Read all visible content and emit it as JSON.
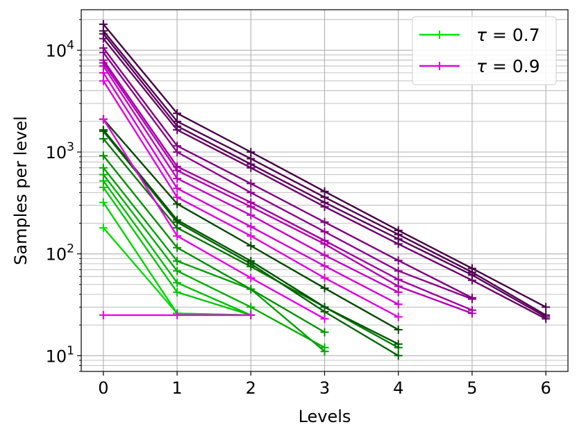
{
  "chart_data": {
    "type": "line",
    "xlabel": "Levels",
    "ylabel": "Samples per level",
    "x_scale": "linear",
    "y_scale": "log",
    "xlim": [
      -0.3,
      6.3
    ],
    "ylim": [
      7,
      25000
    ],
    "grid": true,
    "grid_minor": true,
    "x_ticks": [
      0,
      1,
      2,
      3,
      4,
      5,
      6
    ],
    "y_ticks": [
      {
        "value": 10,
        "mantissa": "10",
        "exp": "1"
      },
      {
        "value": 100,
        "mantissa": "10",
        "exp": "2"
      },
      {
        "value": 1000,
        "mantissa": "10",
        "exp": "3"
      },
      {
        "value": 10000,
        "mantissa": "10",
        "exp": "4"
      }
    ],
    "legend": {
      "position": "top-right",
      "entries": [
        {
          "label_prefix": "τ",
          "label_suffix": " = 0.7",
          "color": "#00e000"
        },
        {
          "label_prefix": "τ",
          "label_suffix": " = 0.9",
          "color": "#e000e0"
        }
      ]
    },
    "series": [
      {
        "color": "#00dd00",
        "x": [
          0,
          1,
          2
        ],
        "y": [
          180,
          26,
          25
        ]
      },
      {
        "color": "#00d400",
        "x": [
          0,
          1,
          2
        ],
        "y": [
          320,
          26,
          25
        ]
      },
      {
        "color": "#00c800",
        "x": [
          0,
          1,
          2
        ],
        "y": [
          450,
          42,
          25
        ]
      },
      {
        "color": "#00bc00",
        "x": [
          0,
          1,
          2
        ],
        "y": [
          520,
          52,
          25
        ]
      },
      {
        "color": "#00b000",
        "x": [
          0,
          1,
          2,
          3
        ],
        "y": [
          600,
          68,
          30,
          12
        ]
      },
      {
        "color": "#00a000",
        "x": [
          0,
          1,
          2,
          3
        ],
        "y": [
          700,
          85,
          45,
          11
        ]
      },
      {
        "color": "#009000",
        "x": [
          0,
          1,
          2,
          3
        ],
        "y": [
          920,
          115,
          45,
          17
        ]
      },
      {
        "color": "#007a00",
        "x": [
          0,
          1,
          2,
          3,
          4
        ],
        "y": [
          1350,
          180,
          75,
          30,
          12
        ]
      },
      {
        "color": "#006400",
        "x": [
          0,
          1,
          2,
          3,
          4
        ],
        "y": [
          1600,
          205,
          80,
          27,
          10
        ]
      },
      {
        "color": "#005400",
        "x": [
          0,
          1,
          2,
          3,
          4
        ],
        "y": [
          1650,
          215,
          85,
          30,
          13
        ]
      },
      {
        "color": "#004800",
        "x": [
          0,
          1,
          2,
          3,
          4
        ],
        "y": [
          2100,
          310,
          120,
          46,
          18
        ]
      },
      {
        "color": "#ee00ee",
        "x": [
          0,
          1,
          2
        ],
        "y": [
          25,
          25,
          25
        ]
      },
      {
        "color": "#e800e8",
        "x": [
          0,
          1,
          2,
          3
        ],
        "y": [
          2100,
          150,
          58,
          23
        ]
      },
      {
        "color": "#e000e0",
        "x": [
          0,
          1,
          2,
          3,
          4
        ],
        "y": [
          5000,
          360,
          150,
          58,
          24
        ]
      },
      {
        "color": "#d400d4",
        "x": [
          0,
          1,
          2,
          3,
          4
        ],
        "y": [
          6000,
          440,
          185,
          76,
          32
        ]
      },
      {
        "color": "#c400c4",
        "x": [
          0,
          1,
          2,
          3,
          4
        ],
        "y": [
          7000,
          550,
          240,
          97,
          42
        ]
      },
      {
        "color": "#b400b4",
        "x": [
          0,
          1,
          2,
          3,
          4,
          5
        ],
        "y": [
          7500,
          660,
          290,
          125,
          48,
          26
        ]
      },
      {
        "color": "#a200a2",
        "x": [
          0,
          1,
          2,
          3,
          4,
          5
        ],
        "y": [
          8000,
          720,
          320,
          135,
          56,
          28
        ]
      },
      {
        "color": "#900090",
        "x": [
          0,
          1,
          2,
          3,
          4,
          5
        ],
        "y": [
          9500,
          1000,
          400,
          165,
          68,
          36
        ]
      },
      {
        "color": "#800080",
        "x": [
          0,
          1,
          2,
          3,
          4,
          5
        ],
        "y": [
          10500,
          1150,
          490,
          205,
          86,
          37
        ]
      },
      {
        "color": "#6a006a",
        "x": [
          0,
          1,
          2,
          3,
          4,
          5,
          6
        ],
        "y": [
          13000,
          1650,
          700,
          290,
          125,
          55,
          23
        ]
      },
      {
        "color": "#5a005a",
        "x": [
          0,
          1,
          2,
          3,
          4,
          5,
          6
        ],
        "y": [
          14500,
          1800,
          760,
          320,
          140,
          62,
          24
        ]
      },
      {
        "color": "#500050",
        "x": [
          0,
          1,
          2,
          3,
          4,
          5,
          6
        ],
        "y": [
          15500,
          2000,
          860,
          360,
          155,
          66,
          25
        ]
      },
      {
        "color": "#440044",
        "x": [
          0,
          1,
          2,
          3,
          4,
          5,
          6
        ],
        "y": [
          18000,
          2400,
          1000,
          410,
          170,
          72,
          30
        ]
      }
    ]
  }
}
